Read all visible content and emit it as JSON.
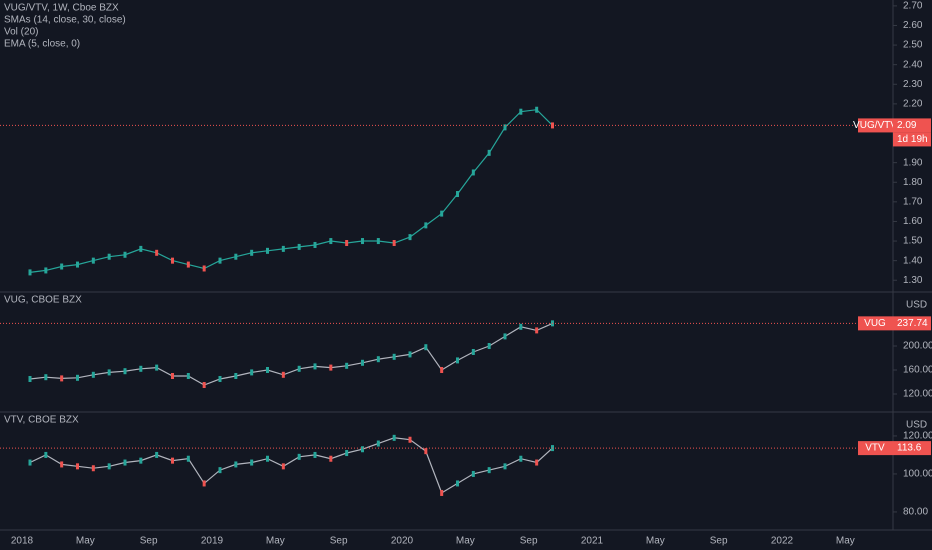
{
  "chart_data": [
    {
      "type": "line",
      "title": "VUG/VTV, 1W, Cboe BZX",
      "indicators": [
        "SMAs (14, close, 30, close)",
        "Vol (20)",
        "EMA (5, close, 0)"
      ],
      "series": [
        {
          "name": "VUG/VTV",
          "color": "#26a69a",
          "values": [
            1.34,
            1.35,
            1.37,
            1.38,
            1.4,
            1.42,
            1.43,
            1.46,
            1.44,
            1.4,
            1.38,
            1.36,
            1.4,
            1.42,
            1.44,
            1.45,
            1.46,
            1.47,
            1.48,
            1.5,
            1.49,
            1.5,
            1.5,
            1.49,
            1.52,
            1.58,
            1.64,
            1.74,
            1.85,
            1.95,
            2.08,
            2.16,
            2.17,
            2.09
          ]
        }
      ],
      "countdown": "1d 19h",
      "ylim": [
        1.24,
        2.73
      ],
      "yticks": [
        {
          "value": 1.3,
          "label": "1.30"
        },
        {
          "value": 1.4,
          "label": "1.40"
        },
        {
          "value": 1.5,
          "label": "1.50"
        },
        {
          "value": 1.6,
          "label": "1.60"
        },
        {
          "value": 1.7,
          "label": "1.70"
        },
        {
          "value": 1.8,
          "label": "1.80"
        },
        {
          "value": 1.9,
          "label": "1.90"
        },
        {
          "value": 2.2,
          "label": "2.20"
        },
        {
          "value": 2.3,
          "label": "2.30"
        },
        {
          "value": 2.4,
          "label": "2.40"
        },
        {
          "value": 2.5,
          "label": "2.50"
        },
        {
          "value": 2.6,
          "label": "2.60"
        },
        {
          "value": 2.7,
          "label": "2.70"
        }
      ]
    },
    {
      "type": "line",
      "title": "VUG, CBOE BZX",
      "currency": "USD",
      "series": [
        {
          "name": "VUG",
          "color": "#b2b5be",
          "values": [
            145,
            148,
            146,
            147,
            152,
            156,
            158,
            162,
            164,
            150,
            150,
            135,
            145,
            150,
            156,
            160,
            152,
            162,
            166,
            164,
            167,
            172,
            178,
            182,
            186,
            198,
            160,
            176,
            190,
            200,
            216,
            232,
            226,
            237.74
          ]
        }
      ],
      "ylim": [
        90,
        290
      ],
      "yticks": [
        {
          "value": 120,
          "label": "120.00"
        },
        {
          "value": 160,
          "label": "160.00"
        },
        {
          "value": 200,
          "label": "200.00"
        }
      ]
    },
    {
      "type": "line",
      "title": "VTV, CBOE BZX",
      "currency": "USD",
      "series": [
        {
          "name": "VTV",
          "color": "#b2b5be",
          "values": [
            106,
            110,
            105,
            104,
            103,
            104,
            106,
            107,
            110,
            107,
            108,
            95,
            102,
            105,
            106,
            108,
            104,
            109,
            110,
            108,
            111,
            113,
            116,
            119,
            118,
            112,
            90,
            95,
            100,
            102,
            104,
            108,
            106,
            113.6
          ]
        }
      ],
      "ylim": [
        70.5,
        132.6
      ],
      "yticks": [
        {
          "value": 80,
          "label": "80.00"
        },
        {
          "value": 100,
          "label": "100.00"
        },
        {
          "value": 120,
          "label": "120.00"
        }
      ]
    }
  ],
  "time_axis": {
    "labels": [
      "2018",
      "May",
      "Sep",
      "2019",
      "May",
      "Sep",
      "2020",
      "May",
      "Sep",
      "2021",
      "May",
      "Sep",
      "2022",
      "May"
    ]
  }
}
